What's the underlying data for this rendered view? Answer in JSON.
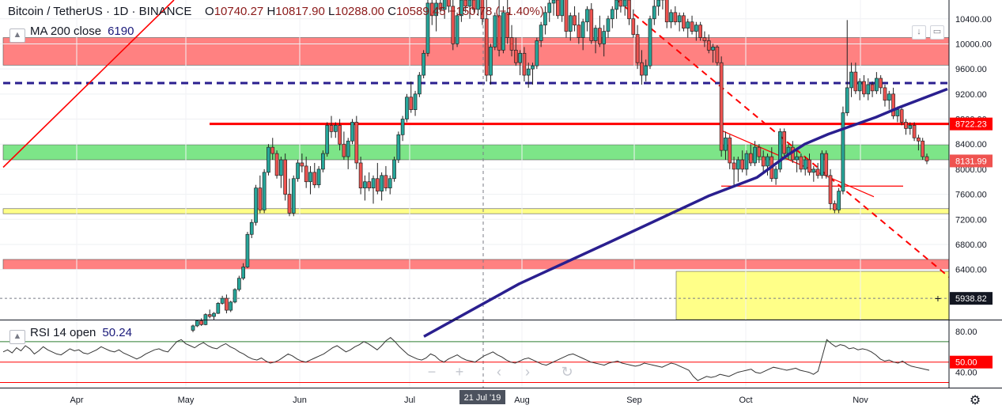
{
  "header": {
    "symbol": "Bitcoin / TetherUS",
    "interval": "1D",
    "exchange": "BINANCE",
    "open_label": "O",
    "open": "10740.27",
    "high_label": "H",
    "high": "10817.90",
    "low_label": "L",
    "low": "10288.00",
    "close_label": "C",
    "close": "10589.45",
    "change": "−150.78 (−1.40%)"
  },
  "indicators": {
    "ma": {
      "label": "MA 200 close",
      "value": "6190"
    },
    "rsi": {
      "label": "RSI 14 open",
      "value": "50.24"
    }
  },
  "colors": {
    "up": "#26a69a",
    "down": "#ef5350",
    "red_zone": "#ff6b6b",
    "green_zone": "#5dde6a",
    "yellow_zone": "#ffff88",
    "ma_line": "#2a1f8f",
    "red_line": "#ff0000"
  },
  "chart_data": {
    "type": "candlestick",
    "title": "Bitcoin / TetherUS, 1D, BINANCE",
    "x_tick_labels": [
      "Apr",
      "May",
      "Jun",
      "Jul",
      "Aug",
      "Sep",
      "Oct",
      "Nov"
    ],
    "crosshair_date": "21 Jul '19",
    "price_axis": {
      "ticks": [
        "10400.00",
        "10000.00",
        "9600.00",
        "9200.00",
        "8800.00",
        "8400.00",
        "8000.00",
        "7600.00",
        "7200.00",
        "6800.00",
        "6400.00"
      ],
      "ylim": [
        5600,
        10700
      ]
    },
    "price_labels": [
      {
        "text": "8722.23",
        "price": 8722.23,
        "color": "#ff0000"
      },
      {
        "text": "8131.99",
        "price": 8131.99,
        "color": "#ef5350"
      },
      {
        "text": "5938.82",
        "price": 5938.82,
        "color": "#131722"
      }
    ],
    "rsi_axis": {
      "ticks": [
        "80.00",
        "40.00"
      ],
      "ylim": [
        25,
        90
      ]
    },
    "rsi_label": {
      "text": "50.00",
      "value": 50,
      "color": "#ff0000"
    },
    "series": [
      {
        "name": "MA 200 close",
        "kind": "line",
        "points": [
          [
            180,
            5330
          ],
          [
            220,
            6170
          ],
          [
            260,
            6870
          ],
          [
            300,
            7580
          ],
          [
            320,
            7870
          ],
          [
            333,
            8230
          ],
          [
            340,
            8400
          ],
          [
            350,
            8560
          ],
          [
            370,
            8830
          ],
          [
            380,
            8990
          ],
          [
            400,
            9280
          ]
        ]
      },
      {
        "name": "RSI 14 open",
        "kind": "rsi",
        "values": [
          60,
          62,
          59,
          64,
          61,
          66,
          63,
          58,
          61,
          65,
          62,
          60,
          58,
          57,
          60,
          63,
          61,
          62,
          59,
          58,
          60,
          62,
          65,
          63,
          61,
          60,
          62,
          59,
          57,
          55,
          53,
          55,
          58,
          60,
          62,
          63,
          61,
          60,
          65,
          70,
          72,
          68,
          66,
          64,
          67,
          69,
          66,
          64,
          63,
          66,
          68,
          65,
          63,
          60,
          58,
          55,
          53,
          52,
          54,
          51,
          49,
          50,
          52,
          55,
          58,
          56,
          53,
          51,
          50,
          52,
          54,
          56,
          58,
          61,
          64,
          66,
          63,
          60,
          62,
          65,
          67,
          70,
          68,
          65,
          62,
          66,
          71,
          74,
          70,
          65,
          61,
          57,
          55,
          53,
          52,
          54,
          58,
          56,
          52,
          50,
          53,
          55,
          57,
          54,
          52,
          51,
          50,
          53,
          56,
          58,
          60,
          57,
          55,
          52,
          50,
          49,
          51,
          53,
          54,
          52,
          50,
          48,
          47,
          49,
          51,
          53,
          55,
          57,
          58,
          56,
          54,
          52,
          50,
          49,
          48,
          47,
          49,
          50,
          51,
          49,
          48,
          47,
          46,
          47,
          49,
          48,
          47,
          46,
          45,
          47,
          49,
          48,
          46,
          44,
          42,
          36,
          32,
          34,
          36,
          35,
          36,
          38,
          37,
          36,
          38,
          40,
          41,
          42,
          43,
          40,
          39,
          41,
          43,
          45,
          44,
          43,
          42,
          43,
          44,
          42,
          41,
          40,
          38,
          41,
          56,
          72,
          68,
          65,
          67,
          66,
          63,
          64,
          62,
          63,
          62,
          60,
          57,
          53,
          51,
          52,
          50,
          49,
          51,
          48,
          46,
          45,
          44,
          43,
          42
        ]
      }
    ],
    "zones": [
      {
        "name": "red-zone-top",
        "from": 9660,
        "to": 10100
      },
      {
        "name": "green-zone",
        "from": 8150,
        "to": 8390
      },
      {
        "name": "yellow-zone-thin",
        "from": 7290,
        "to": 7370
      },
      {
        "name": "red-zone-low",
        "from": 6400,
        "to": 6560
      }
    ],
    "levels": [
      {
        "name": "dashed-level",
        "price": 9375
      },
      {
        "name": "red-level",
        "price": 8722.23
      },
      {
        "name": "dotted-level",
        "price": 5938.82
      }
    ],
    "candles_ohlc": [
      [
        5430,
        5520,
        5400,
        5500
      ],
      [
        5500,
        5600,
        5480,
        5580
      ],
      [
        5580,
        5620,
        5500,
        5520
      ],
      [
        5520,
        5700,
        5510,
        5680
      ],
      [
        5680,
        5760,
        5620,
        5650
      ],
      [
        5650,
        5720,
        5600,
        5700
      ],
      [
        5700,
        5880,
        5690,
        5860
      ],
      [
        5860,
        5980,
        5840,
        5940
      ],
      [
        5940,
        6000,
        5700,
        5750
      ],
      [
        5750,
        5900,
        5720,
        5880
      ],
      [
        5880,
        6100,
        5860,
        6080
      ],
      [
        6080,
        6300,
        6050,
        6260
      ],
      [
        6260,
        6500,
        6230,
        6440
      ],
      [
        6440,
        7000,
        6420,
        6960
      ],
      [
        6960,
        7200,
        6900,
        7150
      ],
      [
        7150,
        7750,
        7100,
        7700
      ],
      [
        7700,
        7900,
        7300,
        7350
      ],
      [
        7350,
        8000,
        7300,
        7950
      ],
      [
        7950,
        8400,
        7900,
        8350
      ],
      [
        8350,
        8500,
        8150,
        8250
      ],
      [
        8250,
        8300,
        7850,
        7900
      ],
      [
        7900,
        8200,
        7700,
        8150
      ],
      [
        8150,
        8250,
        7500,
        7600
      ],
      [
        7600,
        7850,
        7250,
        7300
      ],
      [
        7300,
        7900,
        7250,
        7850
      ],
      [
        7850,
        8150,
        7800,
        8100
      ],
      [
        8100,
        8250,
        7950,
        8050
      ],
      [
        8050,
        8200,
        7700,
        7800
      ],
      [
        7800,
        8050,
        7600,
        7950
      ],
      [
        7950,
        8100,
        7700,
        7750
      ],
      [
        7750,
        8050,
        7700,
        8000
      ],
      [
        8000,
        8300,
        7950,
        8250
      ],
      [
        8250,
        8750,
        8200,
        8700
      ],
      [
        8700,
        8850,
        8500,
        8600
      ],
      [
        8600,
        8750,
        8500,
        8700
      ],
      [
        8700,
        8800,
        8300,
        8400
      ],
      [
        8400,
        8600,
        8150,
        8200
      ],
      [
        8200,
        8500,
        8000,
        8450
      ],
      [
        8450,
        8800,
        8400,
        8750
      ],
      [
        8750,
        8850,
        8000,
        8100
      ],
      [
        8100,
        8200,
        7600,
        7700
      ],
      [
        7700,
        7900,
        7500,
        7800
      ],
      [
        7800,
        7950,
        7650,
        7700
      ],
      [
        7700,
        7900,
        7450,
        7850
      ],
      [
        7850,
        8100,
        7600,
        7650
      ],
      [
        7650,
        7950,
        7500,
        7900
      ],
      [
        7900,
        8050,
        7650,
        7700
      ],
      [
        7700,
        7900,
        7600,
        7850
      ],
      [
        7850,
        8200,
        7800,
        8150
      ],
      [
        8150,
        8600,
        8100,
        8550
      ],
      [
        8550,
        8850,
        8450,
        8800
      ],
      [
        8800,
        9200,
        8750,
        9150
      ],
      [
        9150,
        9400,
        8900,
        8950
      ],
      [
        8950,
        9250,
        8850,
        9200
      ],
      [
        9200,
        9550,
        9150,
        9500
      ],
      [
        9500,
        9900,
        9450,
        9850
      ],
      [
        9850,
        10700,
        9800,
        10650
      ],
      [
        10650,
        10800,
        10300,
        10450
      ],
      [
        10450,
        10700,
        10200,
        10650
      ],
      [
        10650,
        10700,
        10500,
        10550
      ],
      [
        10550,
        10800,
        10400,
        10750
      ],
      [
        10750,
        10800,
        10500,
        10600
      ],
      [
        10600,
        10700,
        9900,
        10000
      ],
      [
        10000,
        10500,
        9950,
        10450
      ],
      [
        10450,
        10800,
        10350,
        10700
      ],
      [
        10700,
        10800,
        10500,
        10600
      ],
      [
        10600,
        10800,
        10400,
        10700
      ],
      [
        10700,
        10750,
        10500,
        10550
      ],
      [
        10550,
        10800,
        10450,
        10750
      ],
      [
        10750,
        10800,
        10300,
        10400
      ],
      [
        10400,
        10800,
        9400,
        9500
      ],
      [
        9500,
        10000,
        9350,
        9950
      ],
      [
        9950,
        10500,
        9900,
        10450
      ],
      [
        10450,
        10700,
        9800,
        9900
      ],
      [
        9900,
        10600,
        9850,
        10500
      ],
      [
        10500,
        10800,
        10000,
        10100
      ],
      [
        10100,
        10300,
        9800,
        9900
      ],
      [
        9900,
        10100,
        9650,
        9700
      ],
      [
        9700,
        9900,
        9500,
        9850
      ],
      [
        9850,
        9950,
        9400,
        9500
      ],
      [
        9500,
        9700,
        9300,
        9600
      ],
      [
        9600,
        9700,
        9350,
        9650
      ],
      [
        9650,
        10100,
        9600,
        10050
      ],
      [
        10050,
        10350,
        9950,
        10300
      ],
      [
        10300,
        10600,
        10150,
        10500
      ],
      [
        10500,
        10700,
        10350,
        10650
      ],
      [
        10650,
        10800,
        10450,
        10700
      ],
      [
        10700,
        10800,
        10400,
        10450
      ],
      [
        10450,
        10800,
        10350,
        10750
      ],
      [
        10750,
        10800,
        10100,
        10200
      ],
      [
        10200,
        10500,
        10050,
        10450
      ],
      [
        10450,
        10600,
        10200,
        10300
      ],
      [
        10300,
        10500,
        10000,
        10100
      ],
      [
        10100,
        10400,
        9900,
        10350
      ],
      [
        10350,
        10600,
        10200,
        10550
      ],
      [
        10550,
        10650,
        10000,
        10050
      ],
      [
        10050,
        10300,
        9850,
        10250
      ],
      [
        10250,
        10450,
        9950,
        10000
      ],
      [
        10000,
        10300,
        9800,
        10200
      ],
      [
        10200,
        10450,
        10100,
        10400
      ],
      [
        10400,
        10600,
        10250,
        10550
      ],
      [
        10550,
        10800,
        10400,
        10700
      ],
      [
        10700,
        10800,
        10500,
        10600
      ],
      [
        10600,
        10800,
        10450,
        10700
      ],
      [
        10700,
        10800,
        10300,
        10400
      ],
      [
        10400,
        10550,
        10100,
        10150
      ],
      [
        10150,
        10300,
        9600,
        9700
      ],
      [
        9700,
        9900,
        9350,
        9500
      ],
      [
        9500,
        9750,
        9400,
        9650
      ],
      [
        9650,
        10450,
        9600,
        10400
      ],
      [
        10400,
        10700,
        10300,
        10600
      ],
      [
        10600,
        10800,
        10450,
        10700
      ],
      [
        10700,
        10800,
        10550,
        10750
      ],
      [
        10750,
        10800,
        10250,
        10350
      ],
      [
        10350,
        10550,
        10250,
        10500
      ],
      [
        10500,
        10600,
        10300,
        10350
      ],
      [
        10350,
        10500,
        10200,
        10450
      ],
      [
        10450,
        10500,
        10200,
        10250
      ],
      [
        10250,
        10400,
        10100,
        10350
      ],
      [
        10350,
        10450,
        10150,
        10200
      ],
      [
        10200,
        10350,
        10050,
        10300
      ],
      [
        10300,
        10350,
        10050,
        10100
      ],
      [
        10100,
        10200,
        9950,
        10050
      ],
      [
        10050,
        10150,
        9850,
        9900
      ],
      [
        9900,
        10000,
        9700,
        9950
      ],
      [
        9950,
        9980,
        9650,
        9700
      ],
      [
        9700,
        9800,
        8200,
        8300
      ],
      [
        8300,
        8600,
        8150,
        8500
      ],
      [
        8500,
        8550,
        8000,
        8100
      ],
      [
        8100,
        8200,
        7750,
        8000
      ],
      [
        8000,
        8200,
        7800,
        8150
      ],
      [
        8150,
        8300,
        7950,
        8000
      ],
      [
        8000,
        8300,
        7900,
        8250
      ],
      [
        8250,
        8400,
        8050,
        8100
      ],
      [
        8100,
        8450,
        8050,
        8350
      ],
      [
        8350,
        8400,
        8100,
        8200
      ],
      [
        8200,
        8300,
        7950,
        8050
      ],
      [
        8050,
        8250,
        7900,
        8200
      ],
      [
        8200,
        8350,
        7800,
        7850
      ],
      [
        7850,
        8050,
        7750,
        8000
      ],
      [
        8000,
        8650,
        7950,
        8600
      ],
      [
        8600,
        8650,
        8200,
        8250
      ],
      [
        8250,
        8400,
        8150,
        8350
      ],
      [
        8350,
        8450,
        8100,
        8150
      ],
      [
        8150,
        8300,
        7950,
        8200
      ],
      [
        8200,
        8250,
        7950,
        8000
      ],
      [
        8000,
        8200,
        7900,
        8150
      ],
      [
        8150,
        8250,
        7900,
        7950
      ],
      [
        7950,
        8050,
        7800,
        8000
      ],
      [
        8000,
        8100,
        7850,
        7900
      ],
      [
        7900,
        8300,
        7850,
        8250
      ],
      [
        8250,
        8300,
        7850,
        7900
      ],
      [
        7900,
        8000,
        7350,
        7450
      ],
      [
        7450,
        7500,
        7300,
        7350
      ],
      [
        7350,
        7700,
        7300,
        7650
      ],
      [
        7650,
        9000,
        7600,
        8900
      ],
      [
        8900,
        10380,
        8850,
        9300
      ],
      [
        9300,
        9700,
        9150,
        9550
      ],
      [
        9550,
        9700,
        9200,
        9250
      ],
      [
        9250,
        9450,
        9100,
        9400
      ],
      [
        9400,
        9500,
        9150,
        9200
      ],
      [
        9200,
        9450,
        9100,
        9350
      ],
      [
        9350,
        9400,
        9150,
        9250
      ],
      [
        9250,
        9550,
        9200,
        9450
      ],
      [
        9450,
        9500,
        9200,
        9300
      ],
      [
        9300,
        9350,
        9000,
        9100
      ],
      [
        9100,
        9250,
        8950,
        9200
      ],
      [
        9200,
        9300,
        8800,
        8850
      ],
      [
        8850,
        9000,
        8750,
        8950
      ],
      [
        8950,
        9000,
        8700,
        8750
      ],
      [
        8750,
        8800,
        8550,
        8650
      ],
      [
        8650,
        8750,
        8550,
        8700
      ],
      [
        8700,
        8750,
        8450,
        8500
      ],
      [
        8500,
        8550,
        8300,
        8450
      ],
      [
        8450,
        8500,
        8150,
        8200
      ],
      [
        8200,
        8250,
        8080,
        8131
      ]
    ]
  }
}
